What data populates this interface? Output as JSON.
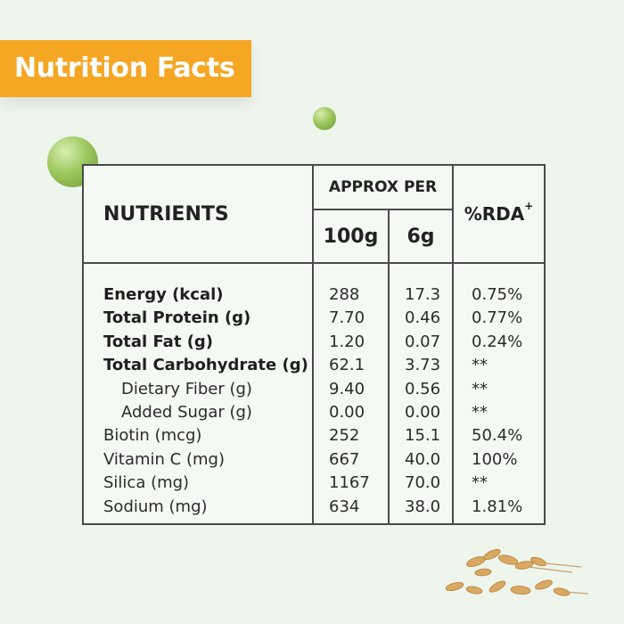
{
  "banner": {
    "title": "Nutrition Facts"
  },
  "table": {
    "header": {
      "nutrients": "NUTRIENTS",
      "approx_per": "APPROX PER",
      "col_100g": "100g",
      "col_6g": "6g",
      "rda": "%RDA",
      "rda_mark": "+"
    },
    "rows": [
      {
        "name": "Energy (kcal)",
        "per100g": "288",
        "per6g": "17.3",
        "rda": "0.75%",
        "style": "bold"
      },
      {
        "name": "Total Protein (g)",
        "per100g": "7.70",
        "per6g": "0.46",
        "rda": "0.77%",
        "style": "bold"
      },
      {
        "name": "Total Fat (g)",
        "per100g": "1.20",
        "per6g": "0.07",
        "rda": "0.24%",
        "style": "bold"
      },
      {
        "name": "Total Carbohydrate (g)",
        "per100g": "62.1",
        "per6g": "3.73",
        "rda": "**",
        "style": "bold"
      },
      {
        "name": "Dietary Fiber (g)",
        "per100g": "9.40",
        "per6g": "0.56",
        "rda": "**",
        "style": "indent"
      },
      {
        "name": "Added Sugar (g)",
        "per100g": "0.00",
        "per6g": "0.00",
        "rda": "**",
        "style": "indent"
      },
      {
        "name": "Biotin (mcg)",
        "per100g": "252",
        "per6g": "15.1",
        "rda": "50.4%",
        "style": "normal"
      },
      {
        "name": "Vitamin C (mg)",
        "per100g": "667",
        "per6g": "40.0",
        "rda": "100%",
        "style": "normal"
      },
      {
        "name": "Silica (mg)",
        "per100g": "1167",
        "per6g": "70.0",
        "rda": "**",
        "style": "normal"
      },
      {
        "name": "Sodium (mg)",
        "per100g": "634",
        "per6g": "38.0",
        "rda": "1.81%",
        "style": "normal"
      }
    ]
  },
  "decor": {
    "pea_icon": "green-pea-icon",
    "grain_icon": "oat-grain-icon"
  }
}
